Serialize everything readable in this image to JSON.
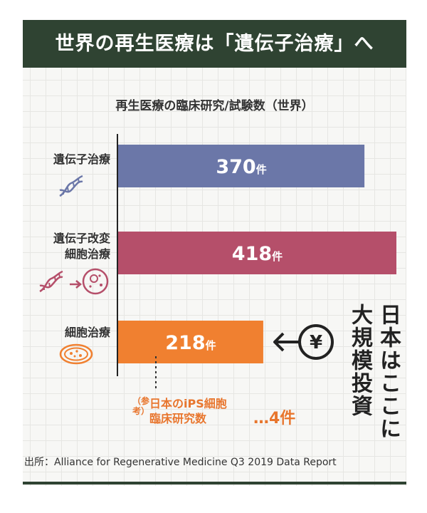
{
  "header": {
    "title": "世界の再生医療は「遺伝子治療」へ"
  },
  "chart_data": {
    "type": "bar",
    "orientation": "horizontal",
    "title": "再生医療の臨床研究/試験数（世界）",
    "categories": [
      "遺伝子治療",
      "遺伝子改変細胞治療",
      "細胞治療"
    ],
    "category_lines": [
      [
        "遺伝子治療"
      ],
      [
        "遺伝子改変",
        "細胞治療"
      ],
      [
        "細胞治療"
      ]
    ],
    "values": [
      370,
      418,
      218
    ],
    "value_labels": [
      "370",
      "418",
      "218"
    ],
    "unit": "件",
    "colors": [
      "#6b77a8",
      "#b54f6a",
      "#f08030"
    ],
    "xlim": [
      0,
      418
    ],
    "grid": true
  },
  "colors": {
    "header": "#2f4332",
    "accent": "#e8762e"
  },
  "icons": [
    "dna-icon",
    "dna-to-cell-icon",
    "petri-dish-icon",
    "yen-coin-icon"
  ],
  "note": {
    "paren": "（参考）",
    "lines": [
      "日本のiPS細胞",
      "臨床研究数"
    ],
    "value": "…4件"
  },
  "callout": {
    "lines": [
      "日本はここに",
      "大規模投資"
    ]
  },
  "source": "出所：Alliance for Regenerative Medicine Q3 2019 Data Report"
}
